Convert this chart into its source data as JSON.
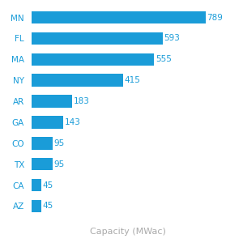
{
  "categories": [
    "MN",
    "FL",
    "MA",
    "NY",
    "AR",
    "GA",
    "CO",
    "TX",
    "CA",
    "AZ"
  ],
  "values": [
    789,
    593,
    555,
    415,
    183,
    143,
    95,
    95,
    45,
    45
  ],
  "bar_color": "#1a9cd8",
  "xlabel": "Capacity (MWac)",
  "xlabel_fontsize": 8,
  "xlabel_color": "#aaaaaa",
  "label_fontsize": 7.5,
  "value_fontsize": 7.5,
  "label_color": "#1a9cd8",
  "value_color": "#1a9cd8",
  "xlim": [
    0,
    870
  ],
  "background_color": "#ffffff",
  "bar_height": 0.6,
  "fig_width": 3.0,
  "fig_height": 3.0
}
